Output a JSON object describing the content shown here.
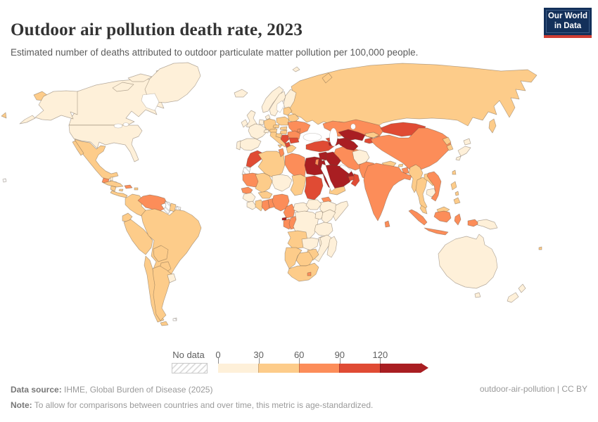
{
  "header": {
    "title": "Outdoor air pollution death rate, 2023",
    "subtitle": "Estimated number of deaths attributed to outdoor particulate matter pollution per 100,000 people.",
    "logo": {
      "line1": "Our World",
      "line2": "in Data",
      "bg_color": "#13305a",
      "accent_color": "#cf3d33"
    }
  },
  "legend": {
    "no_data_label": "No data",
    "ticks": [
      "0",
      "30",
      "60",
      "90",
      "120"
    ]
  },
  "footer": {
    "source_label": "Data source:",
    "source_text": " IHME, Global Burden of Disease (2025)",
    "note_label": "Note:",
    "note_text": " To allow for comparisons between countries and over time, this metric is age-standardized.",
    "right_text": "outdoor-air-pollution | CC BY"
  },
  "chart_data": {
    "type": "choropleth",
    "title": "Outdoor air pollution death rate",
    "year": "2023",
    "unit": "deaths per 100,000 people (age-standardized)",
    "legend_bins": [
      {
        "range": "0-30",
        "color": "#fef0d9"
      },
      {
        "range": "30-60",
        "color": "#fdcc8a"
      },
      {
        "range": "60-90",
        "color": "#fc8d59"
      },
      {
        "range": "90-120",
        "color": "#e04b34"
      },
      {
        "range": "120+",
        "color": "#a91e22"
      }
    ],
    "palette": {
      "0-30": "#fef0d9",
      "30-60": "#fdcc8a",
      "60-90": "#fc8d59",
      "90-120": "#e04b34",
      "120+": "#a91e22"
    },
    "no_data_style": "diagonal-hatch",
    "regions": {
      "united-states": "0-30",
      "canada": "0-30",
      "greenland": "0-30",
      "iceland": "0-30",
      "mexico": "30-60",
      "guatemala": "60-90",
      "belize": "0-30",
      "honduras": "30-60",
      "nicaragua": "30-60",
      "costa-rica-panama": "30-60",
      "cuba": "30-60",
      "jamaica": "30-60",
      "haiti-dominican-republic": "60-90",
      "puerto-rico": "30-60",
      "colombia": "30-60",
      "venezuela": "60-90",
      "guyana": "No data",
      "suriname": "30-60",
      "french-guiana": "No data",
      "ecuador": "30-60",
      "peru": "30-60",
      "brazil": "30-60",
      "bolivia": "30-60",
      "paraguay": "30-60",
      "chile": "30-60",
      "argentina": "30-60",
      "uruguay": "0-30",
      "falkland-islands": "No data",
      "united-kingdom": "0-30",
      "ireland": "0-30",
      "norway": "0-30",
      "sweden": "0-30",
      "finland": "0-30",
      "denmark": "0-30",
      "germany": "30-60",
      "benelux": "0-30",
      "france": "0-30",
      "spain": "0-30",
      "portugal": "0-30",
      "italy": "30-60",
      "switzerland": "0-30",
      "austria": "30-60",
      "czechia": "30-60",
      "poland": "30-60",
      "baltic-states": "30-60",
      "belarus": "30-60",
      "ukraine": "60-90",
      "moldova": "60-90",
      "romania": "60-90",
      "hungary": "30-60",
      "slovakia": "30-60",
      "croatia": "30-60",
      "serbia-bosnia": "90-120",
      "albania-north-macedonia": "90-120",
      "bulgaria": "90-120",
      "greece": "30-60",
      "russia": "30-60",
      "turkey": "90-120",
      "georgia": "90-120",
      "armenia": "120+",
      "azerbaijan": "120+",
      "syria": "120+",
      "israel": "60-90",
      "jordan": "120+",
      "iraq": "120+",
      "kuwait": "120+",
      "saudi-arabia": "120+",
      "qatar": "120+",
      "uae": "90-120",
      "oman": "90-120",
      "yemen": "30-60",
      "iran": "60-90",
      "afghanistan": "0-30",
      "pakistan": "60-90",
      "kazakhstan": "60-90",
      "uzbekistan": "120+",
      "turkmenistan": "120+",
      "kyrgyzstan": "30-60",
      "tajikistan": "90-120",
      "mongolia": "90-120",
      "china": "60-90",
      "north-korea": "30-60",
      "south-korea": "30-60",
      "japan": "0-30",
      "taiwan": "30-60",
      "nepal": "30-60",
      "bhutan": "30-60",
      "bangladesh": "60-90",
      "india": "60-90",
      "sri-lanka": "60-90",
      "myanmar": "30-60",
      "thailand": "30-60",
      "laos": "30-60",
      "cambodia": "0-30",
      "vietnam": "60-90",
      "malaysia": "30-60",
      "indonesia": "60-90",
      "philippines": "30-60",
      "papua-new-guinea": "0-30",
      "australia": "0-30",
      "new-zealand": "0-30",
      "fiji": "30-60",
      "morocco": "90-120",
      "western-sahara": "No data",
      "algeria": "30-60",
      "tunisia": "60-90",
      "libya": "60-90",
      "egypt": "120+",
      "mauritania": "60-90",
      "mali": "30-60",
      "niger": "0-30",
      "chad": "30-60",
      "sudan": "90-120",
      "eritrea": "60-90",
      "ethiopia": "0-30",
      "somalia": "0-30",
      "senegal": "60-90",
      "guinea": "0-30",
      "sierra-leone-liberia": "0-30",
      "ivory-coast": "30-60",
      "ghana": "60-90",
      "togo-benin": "60-90",
      "burkina-faso": "30-60",
      "nigeria": "60-90",
      "cameroon": "60-90",
      "central-african-republic": "0-30",
      "south-sudan": "0-30",
      "equatorial-guinea": "120+",
      "gabon": "60-90",
      "congo": "60-90",
      "dr-congo": "0-30",
      "uganda": "0-30",
      "kenya": "0-30",
      "tanzania": "0-30",
      "angola": "30-60",
      "zambia": "0-30",
      "malawi": "0-30",
      "mozambique": "0-30",
      "zimbabwe": "30-60",
      "botswana": "30-60",
      "namibia": "30-60",
      "south-africa": "30-60",
      "lesotho": "60-90",
      "madagascar": "0-30",
      "hawaii": "No data"
    }
  }
}
